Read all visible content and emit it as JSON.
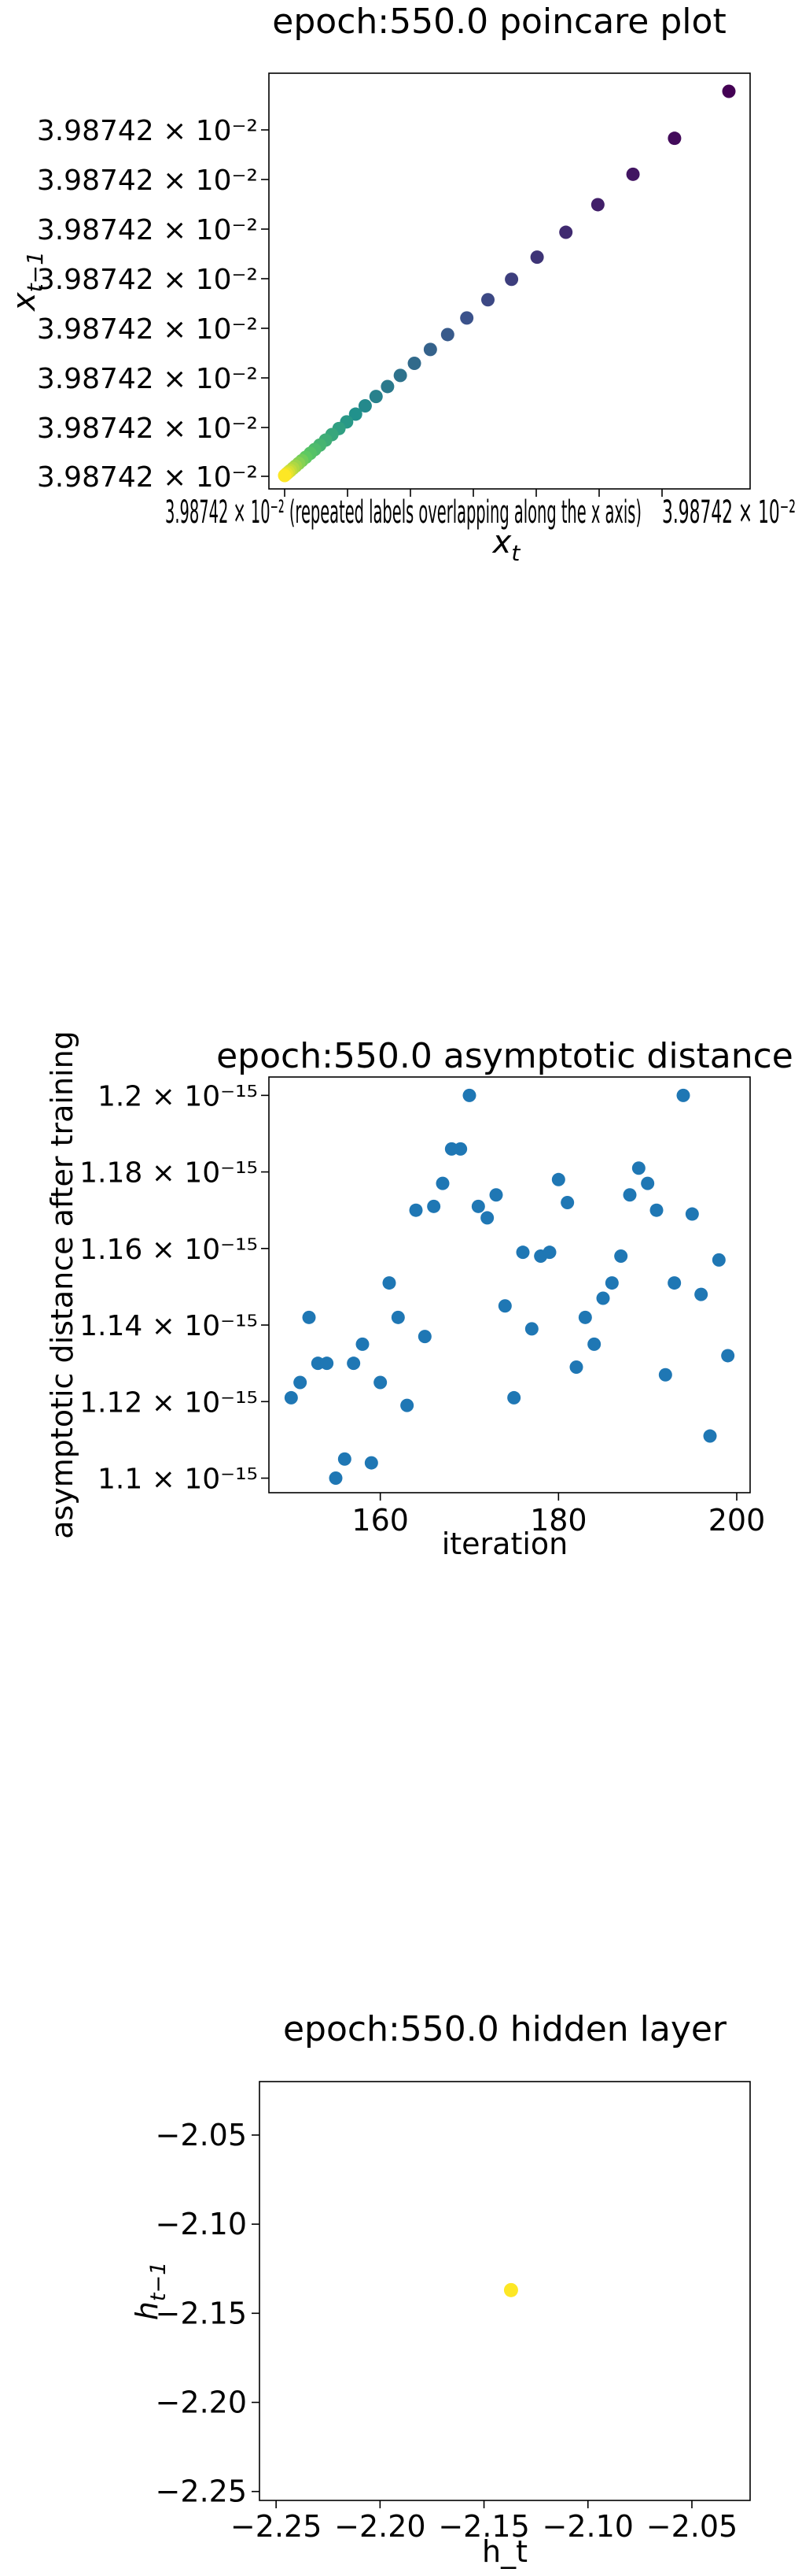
{
  "chart_data": [
    {
      "type": "scatter",
      "title": "epoch:550.0 poincare plot",
      "xlabel": "x_t",
      "ylabel": "x_{t-1}",
      "colormap": "viridis",
      "point_order": "early points dark purple, latest points yellow",
      "y_tick_labels": [
        "3.98742 × 10⁻²",
        "3.98742 × 10⁻²",
        "3.98742 × 10⁻²",
        "3.98742 × 10⁻²",
        "3.98742 × 10⁻²",
        "3.98742 × 10⁻²",
        "3.98742 × 10⁻²",
        "3.98742 × 10⁻²"
      ],
      "x_tick_labels_overlapping": "3.98742 × 10⁻² (repeated labels overlapping along the x axis)",
      "x_tick_label_last": "3.98742 × 10⁻²",
      "x": [
        1.0,
        0.915,
        0.85,
        0.795,
        0.745,
        0.7,
        0.66,
        0.623,
        0.59,
        0.56,
        0.533,
        0.508,
        0.486,
        0.466,
        0.448,
        0.431,
        0.416,
        0.402,
        0.39,
        0.379,
        0.369,
        0.36,
        0.352,
        0.345,
        0.338,
        0.332,
        0.327,
        0.322,
        0.318,
        0.314,
        0.311,
        0.308,
        0.305
      ],
      "y": [
        1.0,
        0.915,
        0.85,
        0.795,
        0.745,
        0.7,
        0.66,
        0.623,
        0.59,
        0.56,
        0.533,
        0.508,
        0.486,
        0.466,
        0.448,
        0.431,
        0.416,
        0.402,
        0.39,
        0.379,
        0.369,
        0.36,
        0.352,
        0.345,
        0.338,
        0.332,
        0.327,
        0.322,
        0.318,
        0.314,
        0.311,
        0.308,
        0.305
      ],
      "value_note": "relative positions within the 3.98742e-2 band (tick labels identical at printed precision)"
    },
    {
      "type": "scatter",
      "title": "epoch:550.0 asymptotic distance",
      "xlabel": "iteration",
      "ylabel": "asymptotic distance after training",
      "color": "#1f77b4",
      "xlim": [
        147.5,
        201.5
      ],
      "ylim": [
        1.0962,
        1.2048
      ],
      "y_exponent": "× 10⁻¹⁵",
      "x_ticks": [
        160,
        180,
        200
      ],
      "x_tick_labels": [
        "160",
        "180",
        "200"
      ],
      "y_ticks": [
        1.1,
        1.12,
        1.14,
        1.16,
        1.18,
        1.2
      ],
      "y_tick_labels": [
        "1.1 × 10⁻¹⁵",
        "1.12 × 10⁻¹⁵",
        "1.14 × 10⁻¹⁵",
        "1.16 × 10⁻¹⁵",
        "1.18 × 10⁻¹⁵",
        "1.2 × 10⁻¹⁵"
      ],
      "x": [
        150,
        151,
        152,
        153,
        154,
        155,
        156,
        157,
        158,
        159,
        160,
        161,
        162,
        163,
        164,
        165,
        166,
        167,
        168,
        169,
        170,
        171,
        172,
        173,
        174,
        175,
        176,
        177,
        178,
        179,
        180,
        181,
        182,
        183,
        184,
        185,
        186,
        187,
        188,
        189,
        190,
        191,
        192,
        193,
        194,
        195,
        196,
        197,
        198,
        199
      ],
      "y": [
        1.121,
        1.125,
        1.142,
        1.13,
        1.13,
        1.1,
        1.105,
        1.13,
        1.135,
        1.104,
        1.125,
        1.151,
        1.142,
        1.119,
        1.17,
        1.137,
        1.171,
        1.177,
        1.186,
        1.186,
        1.2,
        1.171,
        1.168,
        1.174,
        1.145,
        1.121,
        1.159,
        1.139,
        1.158,
        1.159,
        1.178,
        1.172,
        1.129,
        1.142,
        1.135,
        1.147,
        1.151,
        1.158,
        1.174,
        1.181,
        1.177,
        1.17,
        1.127,
        1.151,
        1.2,
        1.169,
        1.148,
        1.111,
        1.157,
        1.132
      ]
    },
    {
      "type": "scatter",
      "title": "epoch:550.0 hidden layer",
      "xlabel": "h_t",
      "ylabel": "h_{t-1}",
      "color": "#fde725",
      "xlim": [
        -2.258,
        -2.022
      ],
      "ylim": [
        -2.255,
        -2.02
      ],
      "x_ticks": [
        -2.25,
        -2.2,
        -2.15,
        -2.1,
        -2.05
      ],
      "x_tick_labels": [
        "−2.25",
        "−2.20",
        "−2.15",
        "−2.10",
        "−2.05"
      ],
      "y_ticks": [
        -2.05,
        -2.1,
        -2.15,
        -2.2,
        -2.25
      ],
      "y_tick_labels": [
        "−2.05",
        "−2.10",
        "−2.15",
        "−2.20",
        "−2.25"
      ],
      "x": [
        -2.137
      ],
      "y": [
        -2.137
      ]
    }
  ]
}
